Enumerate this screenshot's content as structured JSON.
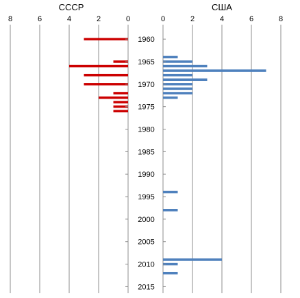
{
  "chart_data": [
    {
      "type": "bar",
      "orientation": "horizontal",
      "direction": "right-to-left",
      "title": "СССР",
      "bar_color": "#cc0000",
      "xlim": [
        0,
        8
      ],
      "x_ticks": [
        8,
        6,
        4,
        2,
        0
      ],
      "gridlines": "vertical",
      "data": [
        {
          "year": 1960,
          "value": 3
        },
        {
          "year": 1965,
          "value": 1
        },
        {
          "year": 1966,
          "value": 4
        },
        {
          "year": 1968,
          "value": 3
        },
        {
          "year": 1970,
          "value": 3
        },
        {
          "year": 1972,
          "value": 1
        },
        {
          "year": 1973,
          "value": 2
        },
        {
          "year": 1974,
          "value": 1
        },
        {
          "year": 1975,
          "value": 1
        },
        {
          "year": 1976,
          "value": 1
        }
      ]
    },
    {
      "type": "bar",
      "orientation": "horizontal",
      "direction": "left-to-right",
      "title": "США",
      "bar_color": "#4f81bd",
      "xlim": [
        0,
        8
      ],
      "x_ticks": [
        0,
        2,
        4,
        6,
        8
      ],
      "gridlines": "vertical",
      "data": [
        {
          "year": 1964,
          "value": 1
        },
        {
          "year": 1965,
          "value": 2
        },
        {
          "year": 1966,
          "value": 3
        },
        {
          "year": 1967,
          "value": 7
        },
        {
          "year": 1968,
          "value": 2
        },
        {
          "year": 1969,
          "value": 3
        },
        {
          "year": 1970,
          "value": 2
        },
        {
          "year": 1971,
          "value": 2
        },
        {
          "year": 1972,
          "value": 2
        },
        {
          "year": 1973,
          "value": 1
        },
        {
          "year": 1994,
          "value": 1
        },
        {
          "year": 1998,
          "value": 1
        },
        {
          "year": 2009,
          "value": 4
        },
        {
          "year": 2010,
          "value": 1
        },
        {
          "year": 2012,
          "value": 1
        }
      ]
    }
  ],
  "year_axis": {
    "labels": [
      "1960",
      "1965",
      "1970",
      "1975",
      "1980",
      "1985",
      "1990",
      "1995",
      "2000",
      "2005",
      "2010",
      "2015"
    ],
    "range": [
      1958,
      2016
    ]
  }
}
